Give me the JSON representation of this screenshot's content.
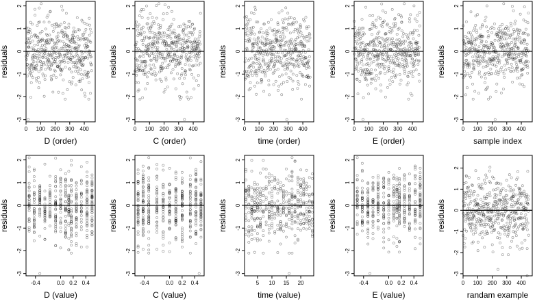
{
  "panels": [
    {
      "xlabel": "D (order)",
      "ylabel": "residuals",
      "xlim": [
        0,
        475
      ],
      "ylim": [
        -3.1,
        2.2
      ],
      "xticks": [
        0,
        100,
        200,
        300,
        400
      ],
      "xtick_labels": [
        "0",
        "100",
        "200",
        "300",
        "400"
      ],
      "yticks": [
        -3,
        -2,
        -1,
        0,
        1,
        2
      ],
      "ytick_labels": [
        "-3",
        "-2",
        "-1",
        "0",
        "1",
        "2"
      ],
      "hline": 0,
      "x_mode": "index",
      "n_points": 450,
      "seed": 11,
      "outliers": [
        [
          15,
          -3.0
        ]
      ]
    },
    {
      "xlabel": "C (order)",
      "ylabel": "residuals",
      "xlim": [
        0,
        475
      ],
      "ylim": [
        -3.1,
        2.2
      ],
      "xticks": [
        0,
        100,
        200,
        300,
        400
      ],
      "xtick_labels": [
        "0",
        "100",
        "200",
        "300",
        "400"
      ],
      "yticks": [
        -3,
        -2,
        -1,
        0,
        1,
        2
      ],
      "ytick_labels": [
        "-3",
        "-2",
        "-1",
        "0",
        "1",
        "2"
      ],
      "hline": 0,
      "x_mode": "index",
      "n_points": 450,
      "seed": 23,
      "outliers": [
        [
          340,
          -3.0
        ]
      ]
    },
    {
      "xlabel": "time (order)",
      "ylabel": "residuals",
      "xlim": [
        0,
        475
      ],
      "ylim": [
        -3.1,
        2.2
      ],
      "xticks": [
        0,
        100,
        200,
        300,
        400
      ],
      "xtick_labels": [
        "0",
        "100",
        "200",
        "300",
        "400"
      ],
      "yticks": [
        -3,
        -2,
        -1,
        0,
        1,
        2
      ],
      "ytick_labels": [
        "-3",
        "-2",
        "-1",
        "0",
        "1",
        "2"
      ],
      "hline": 0,
      "x_mode": "index",
      "n_points": 450,
      "seed": 37,
      "outliers": [
        [
          290,
          -3.0
        ]
      ]
    },
    {
      "xlabel": "E (order)",
      "ylabel": "residuals",
      "xlim": [
        0,
        475
      ],
      "ylim": [
        -3.1,
        2.2
      ],
      "xticks": [
        0,
        100,
        200,
        300,
        400
      ],
      "xtick_labels": [
        "0",
        "100",
        "200",
        "300",
        "400"
      ],
      "yticks": [
        -3,
        -2,
        -1,
        0,
        1,
        2
      ],
      "ytick_labels": [
        "-3",
        "-2",
        "-1",
        "0",
        "1",
        "2"
      ],
      "hline": 0,
      "x_mode": "index",
      "n_points": 450,
      "seed": 41,
      "outliers": [
        [
          60,
          -3.0
        ]
      ]
    },
    {
      "xlabel": "sample index",
      "ylabel": "residuals",
      "xlim": [
        0,
        475
      ],
      "ylim": [
        -3.1,
        2.2
      ],
      "xticks": [
        0,
        100,
        200,
        300,
        400
      ],
      "xtick_labels": [
        "0",
        "100",
        "200",
        "300",
        "400"
      ],
      "yticks": [
        -3,
        -2,
        -1,
        0,
        1,
        2
      ],
      "ytick_labels": [
        "-3",
        "-2",
        "-1",
        "0",
        "1",
        "2"
      ],
      "hline": 0,
      "x_mode": "index",
      "n_points": 450,
      "seed": 53,
      "outliers": [
        [
          220,
          -3.0
        ]
      ]
    },
    {
      "xlabel": "D (value)",
      "ylabel": "residuals",
      "xlim": [
        -0.55,
        0.55
      ],
      "ylim": [
        -3.1,
        2.2
      ],
      "xticks": [
        -0.4,
        0.0,
        0.2,
        0.4
      ],
      "xtick_labels": [
        "-0.4",
        "0.0",
        "0.2",
        "0.4"
      ],
      "yticks": [
        -3,
        -2,
        -1,
        0,
        1,
        2
      ],
      "ytick_labels": [
        "-3",
        "-2",
        "-1",
        "0",
        "1",
        "2"
      ],
      "hline": 0,
      "x_mode": "discrete",
      "x_levels": [
        -0.5,
        -0.42,
        -0.33,
        -0.25,
        -0.17,
        -0.08,
        0.0,
        0.08,
        0.13,
        0.17,
        0.25,
        0.33,
        0.42,
        0.5
      ],
      "n_points": 450,
      "seed": 61,
      "outliers": [
        [
          -0.33,
          -3.0
        ]
      ]
    },
    {
      "xlabel": "C (value)",
      "ylabel": "residuals",
      "xlim": [
        -0.55,
        0.55
      ],
      "ylim": [
        -3.1,
        2.2
      ],
      "xticks": [
        -0.4,
        0.0,
        0.2,
        0.4
      ],
      "xtick_labels": [
        "-0.4",
        "0.0",
        "0.2",
        "0.4"
      ],
      "yticks": [
        -3,
        -2,
        -1,
        0,
        1,
        2
      ],
      "ytick_labels": [
        "-3",
        "-2",
        "-1",
        "0",
        "1",
        "2"
      ],
      "hline": 0,
      "x_mode": "discrete",
      "x_levels": [
        -0.5,
        -0.42,
        -0.33,
        -0.2,
        -0.1,
        0.0,
        0.1,
        0.2,
        0.33,
        0.42,
        0.5
      ],
      "n_points": 450,
      "seed": 71,
      "outliers": [
        [
          0.47,
          -3.0
        ]
      ]
    },
    {
      "xlabel": "time (value)",
      "ylabel": "residuals",
      "xlim": [
        0.5,
        24.5
      ],
      "ylim": [
        -3.1,
        2.2
      ],
      "xticks": [
        5,
        10,
        15,
        20
      ],
      "xtick_labels": [
        "5",
        "10",
        "15",
        "20"
      ],
      "yticks": [
        -3,
        -2,
        -1,
        0,
        1,
        2
      ],
      "ytick_labels": [
        "-3",
        "-2",
        "-1",
        "0",
        "1",
        "2"
      ],
      "hline": 0,
      "x_mode": "discrete",
      "x_levels": [
        1,
        2,
        3,
        4,
        5,
        6,
        7,
        8,
        9,
        10,
        11,
        12,
        13,
        14,
        15,
        16,
        17,
        18,
        19,
        20,
        21,
        22,
        23,
        24
      ],
      "n_points": 450,
      "seed": 83,
      "outliers": [
        [
          16,
          -3.0
        ]
      ]
    },
    {
      "xlabel": "E (value)",
      "ylabel": "residuals",
      "xlim": [
        -0.55,
        0.55
      ],
      "ylim": [
        -3.1,
        2.2
      ],
      "xticks": [
        -0.4,
        0.0,
        0.2,
        0.4
      ],
      "xtick_labels": [
        "-0.4",
        "0.0",
        "0.2",
        "0.4"
      ],
      "yticks": [
        -3,
        -2,
        -1,
        0,
        1,
        2
      ],
      "ytick_labels": [
        "-3",
        "-2",
        "-1",
        "0",
        "1",
        "2"
      ],
      "hline": 0,
      "x_mode": "discrete",
      "x_levels": [
        -0.5,
        -0.42,
        -0.33,
        -0.25,
        -0.17,
        -0.08,
        0.0,
        0.08,
        0.13,
        0.17,
        0.25,
        0.33,
        0.42,
        0.5
      ],
      "n_points": 450,
      "seed": 97,
      "outliers": [
        [
          -0.3,
          -3.0
        ]
      ]
    },
    {
      "xlabel": "randam example",
      "ylabel": "residuals",
      "xlim": [
        0,
        475
      ],
      "ylim": [
        -3.1,
        2.6
      ],
      "xticks": [
        0,
        100,
        200,
        300,
        400
      ],
      "xtick_labels": [
        "0",
        "100",
        "200",
        "300",
        "400"
      ],
      "yticks": [
        -3,
        -2,
        -1,
        0,
        1,
        2
      ],
      "ytick_labels": [
        "-3",
        "-2",
        "-1",
        "0",
        "1",
        "2"
      ],
      "hline": 0,
      "x_mode": "index",
      "n_points": 450,
      "seed": 101,
      "outliers": [
        [
          240,
          -2.8
        ],
        [
          440,
          -3.1
        ]
      ]
    }
  ],
  "chart_data": [
    {
      "type": "scatter",
      "xlabel": "D (order)",
      "ylabel": "residuals",
      "xlim": [
        0,
        475
      ],
      "ylim": [
        -3.1,
        2.2
      ],
      "reference_line_y": 0,
      "points": "450 residuals plotted against observation order, spread roughly -2 to 2, one low point near -3 at x≈15"
    },
    {
      "type": "scatter",
      "xlabel": "C (order)",
      "ylabel": "residuals",
      "xlim": [
        0,
        475
      ],
      "ylim": [
        -3.1,
        2.2
      ],
      "reference_line_y": 0,
      "points": "450 residuals vs order, low point near -3 at x≈340"
    },
    {
      "type": "scatter",
      "xlabel": "time (order)",
      "ylabel": "residuals",
      "xlim": [
        0,
        475
      ],
      "ylim": [
        -3.1,
        2.2
      ],
      "reference_line_y": 0,
      "points": "450 residuals vs order, low point near -3 at x≈290"
    },
    {
      "type": "scatter",
      "xlabel": "E (order)",
      "ylabel": "residuals",
      "xlim": [
        0,
        475
      ],
      "ylim": [
        -3.1,
        2.2
      ],
      "reference_line_y": 0,
      "points": "450 residuals vs order, low point near -3 at x≈60"
    },
    {
      "type": "scatter",
      "xlabel": "sample index",
      "ylabel": "residuals",
      "xlim": [
        0,
        475
      ],
      "ylim": [
        -3.1,
        2.2
      ],
      "reference_line_y": 0,
      "points": "450 residuals vs sample index, low point near -3 at x≈220"
    },
    {
      "type": "scatter",
      "xlabel": "D (value)",
      "ylabel": "residuals",
      "xlim": [
        -0.55,
        0.55
      ],
      "ylim": [
        -3.1,
        2.2
      ],
      "reference_line_y": 0,
      "points": "residuals in vertical columns at discrete D levels between -0.5 and 0.5"
    },
    {
      "type": "scatter",
      "xlabel": "C (value)",
      "ylabel": "residuals",
      "xlim": [
        -0.55,
        0.55
      ],
      "ylim": [
        -3.1,
        2.2
      ],
      "reference_line_y": 0,
      "points": "residuals in vertical columns at discrete C levels between -0.5 and 0.5"
    },
    {
      "type": "scatter",
      "xlabel": "time (value)",
      "ylabel": "residuals",
      "xlim": [
        0.5,
        24.5
      ],
      "ylim": [
        -3.1,
        2.2
      ],
      "reference_line_y": 0,
      "points": "residuals in vertical columns at integer times 1-24"
    },
    {
      "type": "scatter",
      "xlabel": "E (value)",
      "ylabel": "residuals",
      "xlim": [
        -0.55,
        0.55
      ],
      "ylim": [
        -3.1,
        2.2
      ],
      "reference_line_y": 0,
      "points": "residuals in vertical columns at discrete E levels between -0.5 and 0.5"
    },
    {
      "type": "scatter",
      "xlabel": "randam example",
      "ylabel": "residuals",
      "xlim": [
        0,
        475
      ],
      "ylim": [
        -3.1,
        2.6
      ],
      "reference_line_y": 0,
      "points": "450 random-noise residuals vs index, spread roughly -2.5 to 2.5"
    }
  ],
  "style": {
    "point_color": "#000000",
    "point_opacity": 0.45,
    "axis_color": "#000000"
  }
}
